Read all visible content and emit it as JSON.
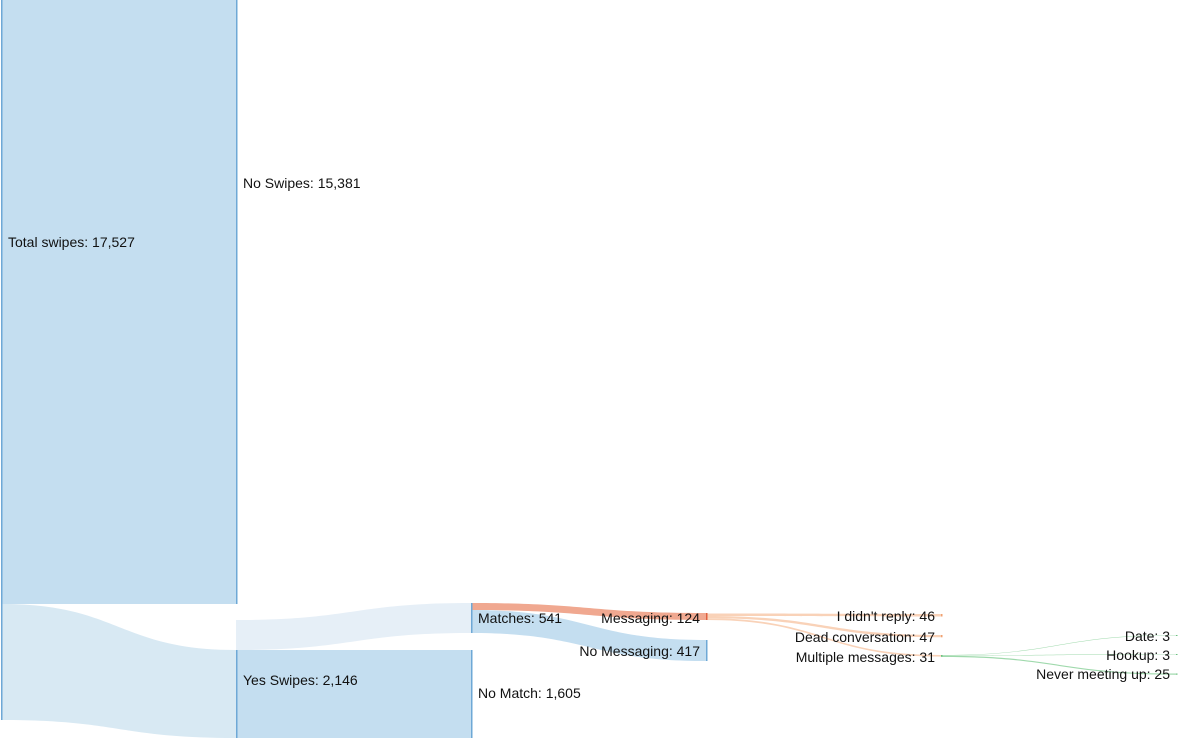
{
  "nodes": {
    "total": "Total swipes: 17,527",
    "no_swipes": "No Swipes: 15,381",
    "yes_swipes": "Yes Swipes: 2,146",
    "matches": "Matches: 541",
    "no_match": "No Match: 1,605",
    "messaging": "Messaging: 124",
    "no_messaging": "No Messaging: 417",
    "didnt_reply": "I didn't reply: 46",
    "dead": "Dead conversation: 47",
    "multiple": "Multiple messages: 31",
    "date": "Date: 3",
    "hookup": "Hookup: 3",
    "never": "Never meeting up: 25"
  },
  "colors": {
    "blue": "#c4def0",
    "light_blue": "#d8e9f3",
    "pale_blue": "#e6eff7",
    "node_blue": "#6ea8d6",
    "orange": "#f0a890",
    "light_orange": "#f9d2b8",
    "green": "#9fd9ac"
  }
}
